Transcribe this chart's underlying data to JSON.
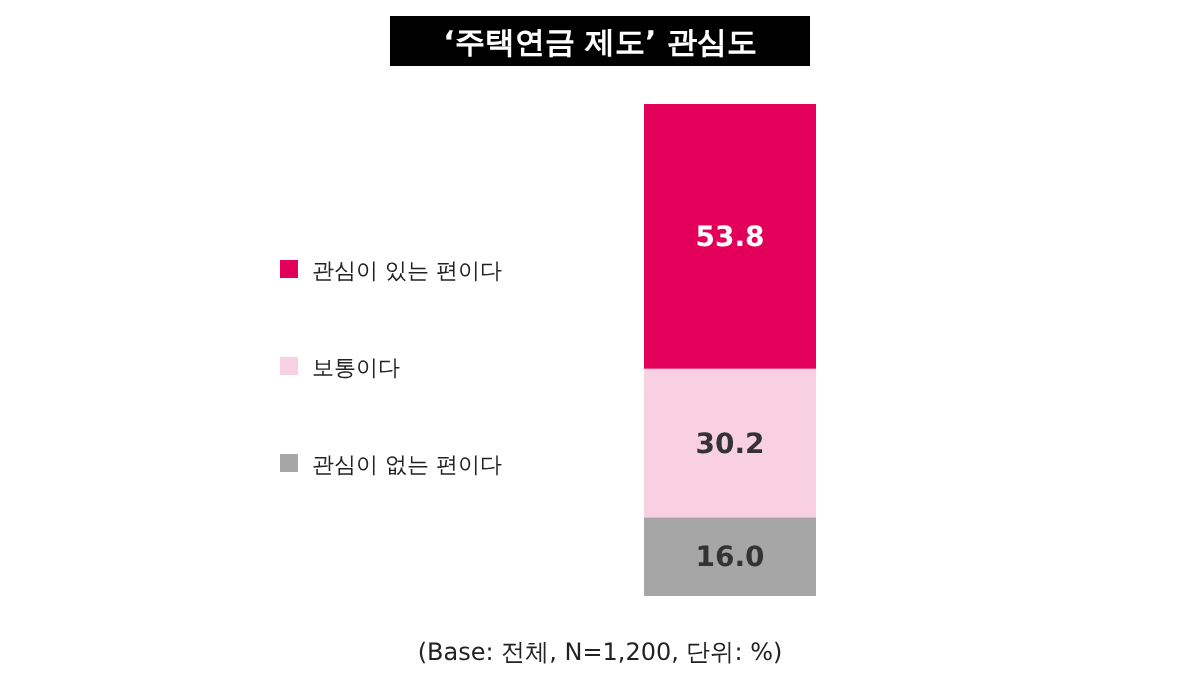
{
  "chart_data": {
    "type": "bar",
    "title": "‘주택연금 제도’ 관심도",
    "categories": [
      null
    ],
    "stacked": true,
    "legend": "left",
    "annotations": [
      "(Base: 전체, N=1,200, 단위: %)"
    ],
    "series": [
      {
        "name": "관심이 없는 편이다",
        "color": "#a6a6a6",
        "values": [
          16.0
        ],
        "value_labels": [
          "16.0"
        ]
      },
      {
        "name": "보통이다",
        "color": "#f8d0e1",
        "values": [
          30.2
        ],
        "value_labels": [
          "30.2"
        ]
      },
      {
        "name": "관심이 있는 편이다",
        "color": "#e2005a",
        "values": [
          53.8
        ],
        "value_labels": [
          "53.8"
        ]
      }
    ]
  }
}
